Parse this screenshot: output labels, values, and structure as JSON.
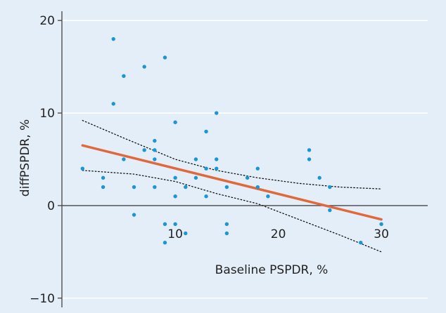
{
  "chart_data": {
    "type": "scatter",
    "title": "",
    "xlabel": "Baseline PSPDR, %",
    "ylabel": "diffPSPDR, %",
    "xlim": [
      -1,
      34.5
    ],
    "ylim": [
      -11,
      21
    ],
    "x_ticks": [
      10,
      20,
      30
    ],
    "x_tick_labels": [
      "10",
      "20",
      "30"
    ],
    "y_ticks": [
      20,
      10,
      0,
      -10
    ],
    "y_tick_labels": [
      "20",
      "10",
      "0",
      "−10"
    ],
    "grid": "horizontal",
    "legend": "none",
    "points": [
      {
        "x": 1,
        "y": 4
      },
      {
        "x": 3,
        "y": 2
      },
      {
        "x": 3,
        "y": 3
      },
      {
        "x": 4,
        "y": 18
      },
      {
        "x": 4,
        "y": 11
      },
      {
        "x": 5,
        "y": 14
      },
      {
        "x": 5,
        "y": 5
      },
      {
        "x": 6,
        "y": 2
      },
      {
        "x": 6,
        "y": -1
      },
      {
        "x": 7,
        "y": 15
      },
      {
        "x": 7,
        "y": 6
      },
      {
        "x": 8,
        "y": 7
      },
      {
        "x": 8,
        "y": 6
      },
      {
        "x": 8,
        "y": 5
      },
      {
        "x": 8,
        "y": 2
      },
      {
        "x": 9,
        "y": 16
      },
      {
        "x": 9,
        "y": -2
      },
      {
        "x": 9,
        "y": -4
      },
      {
        "x": 10,
        "y": 9
      },
      {
        "x": 10,
        "y": 3
      },
      {
        "x": 10,
        "y": 1
      },
      {
        "x": 10,
        "y": -2
      },
      {
        "x": 11,
        "y": 2
      },
      {
        "x": 11,
        "y": -3
      },
      {
        "x": 12,
        "y": 5
      },
      {
        "x": 12,
        "y": 3
      },
      {
        "x": 13,
        "y": 8
      },
      {
        "x": 13,
        "y": 4
      },
      {
        "x": 13,
        "y": 1
      },
      {
        "x": 14,
        "y": 10
      },
      {
        "x": 14,
        "y": 5
      },
      {
        "x": 14,
        "y": 4
      },
      {
        "x": 15,
        "y": 2
      },
      {
        "x": 15,
        "y": -2
      },
      {
        "x": 15,
        "y": -3
      },
      {
        "x": 17,
        "y": 3
      },
      {
        "x": 18,
        "y": 4
      },
      {
        "x": 18,
        "y": 2
      },
      {
        "x": 19,
        "y": 1
      },
      {
        "x": 23,
        "y": 6
      },
      {
        "x": 23,
        "y": 5
      },
      {
        "x": 24,
        "y": 3
      },
      {
        "x": 25,
        "y": 2
      },
      {
        "x": 25,
        "y": -0.5
      },
      {
        "x": 28,
        "y": -4
      },
      {
        "x": 30,
        "y": -2
      }
    ],
    "regression_line": [
      {
        "x": 1,
        "y": 6.5
      },
      {
        "x": 30,
        "y": -1.5
      }
    ],
    "ci_upper": [
      {
        "x": 1,
        "y": 9.2
      },
      {
        "x": 5,
        "y": 7.3
      },
      {
        "x": 10,
        "y": 5.0
      },
      {
        "x": 14,
        "y": 3.8
      },
      {
        "x": 18,
        "y": 3.0
      },
      {
        "x": 22,
        "y": 2.4
      },
      {
        "x": 26,
        "y": 2.0
      },
      {
        "x": 30,
        "y": 1.8
      }
    ],
    "ci_lower": [
      {
        "x": 1,
        "y": 3.8
      },
      {
        "x": 6,
        "y": 3.4
      },
      {
        "x": 10,
        "y": 2.6
      },
      {
        "x": 14,
        "y": 1.3
      },
      {
        "x": 18,
        "y": 0.2
      },
      {
        "x": 22,
        "y": -1.5
      },
      {
        "x": 26,
        "y": -3.2
      },
      {
        "x": 30,
        "y": -5.0
      }
    ],
    "colors": {
      "background": "#e3eef8",
      "points": "#1a96d4",
      "regression": "#e0683a",
      "ci": "#111111",
      "grid": "#ffffff",
      "axis": "#444444"
    }
  }
}
